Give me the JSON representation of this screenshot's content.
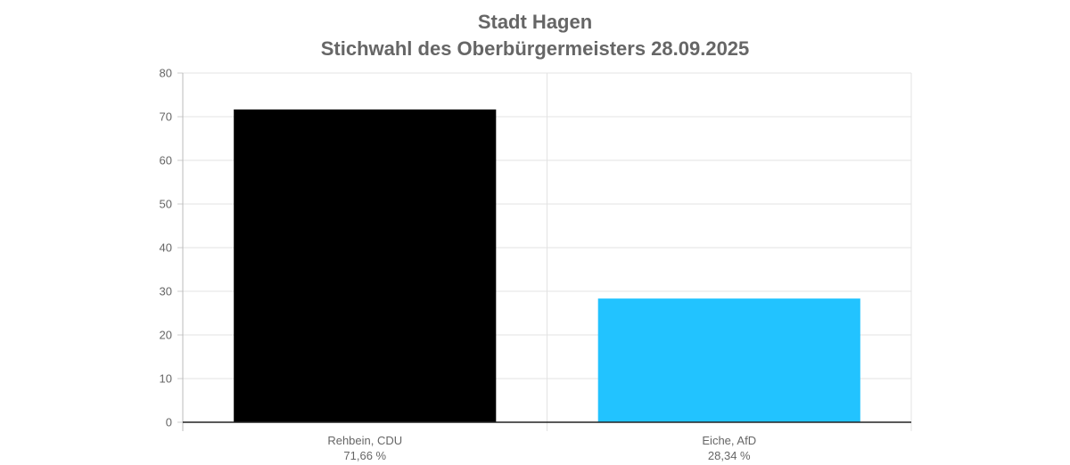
{
  "title_line1": "Stadt Hagen",
  "title_line2": "Stichwahl des Oberbürgermeisters 28.09.2025",
  "chart_data": {
    "type": "bar",
    "categories": [
      "Rehbein, CDU",
      "Eiche, AfD"
    ],
    "sublabels": [
      "71,66 %",
      "28,34 %"
    ],
    "values": [
      71.66,
      28.34
    ],
    "colors": [
      "#000000",
      "#22c3ff"
    ],
    "ylim": [
      0,
      80
    ],
    "yticks": [
      0,
      10,
      20,
      30,
      40,
      50,
      60,
      70,
      80
    ],
    "grid": true,
    "xlabel": "",
    "ylabel": ""
  }
}
